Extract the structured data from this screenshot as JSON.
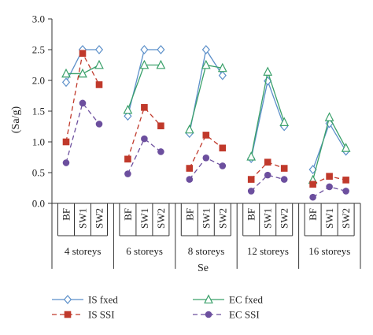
{
  "chart_data": {
    "type": "line",
    "ylabel": "(Sa/g)",
    "xlabel": "Se",
    "ylim": [
      0,
      3.0
    ],
    "yticks": [
      "0.0",
      "0.5",
      "1.0",
      "1.5",
      "2.0",
      "2.5",
      "3.0"
    ],
    "sub_categories": [
      "BF",
      "SW1",
      "SW2"
    ],
    "groups": [
      "4 storeys",
      "6 storeys",
      "8 storeys",
      "12 storeys",
      "16 storeys"
    ],
    "legend_position": "bottom",
    "series": [
      {
        "name": "IS fxed",
        "color": "#5b8fc9",
        "dash": "solid",
        "marker": "diamond",
        "values": [
          [
            1.97,
            2.5,
            2.5
          ],
          [
            1.42,
            2.5,
            2.5
          ],
          [
            1.14,
            2.5,
            2.08
          ],
          [
            0.73,
            1.99,
            1.25
          ],
          [
            0.55,
            1.3,
            0.85
          ]
        ]
      },
      {
        "name": "EC fxed",
        "color": "#3aa06a",
        "dash": "solid",
        "marker": "triangle",
        "values": [
          [
            2.11,
            2.11,
            2.25
          ],
          [
            1.52,
            2.25,
            2.25
          ],
          [
            1.2,
            2.25,
            2.2
          ],
          [
            0.76,
            2.14,
            1.32
          ],
          [
            0.38,
            1.4,
            0.9
          ]
        ]
      },
      {
        "name": "IS SSI",
        "color": "#c0392b",
        "dash": "dashed",
        "marker": "square",
        "values": [
          [
            1.0,
            2.44,
            1.93
          ],
          [
            0.72,
            1.56,
            1.26
          ],
          [
            0.57,
            1.11,
            0.9
          ],
          [
            0.39,
            0.67,
            0.57
          ],
          [
            0.31,
            0.44,
            0.38
          ]
        ]
      },
      {
        "name": "EC SSI",
        "color": "#6c4f9e",
        "dash": "dashed",
        "marker": "circle",
        "values": [
          [
            0.66,
            1.63,
            1.29
          ],
          [
            0.48,
            1.05,
            0.84
          ],
          [
            0.39,
            0.74,
            0.61
          ],
          [
            0.2,
            0.46,
            0.39
          ],
          [
            0.1,
            0.27,
            0.2
          ]
        ]
      }
    ]
  }
}
